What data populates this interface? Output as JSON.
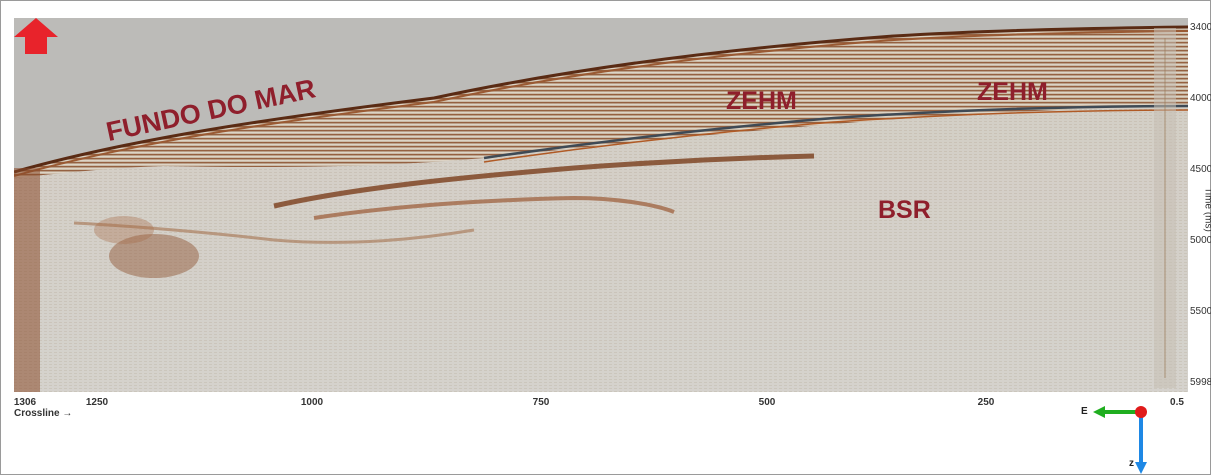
{
  "annotations": {
    "seafloor": "FUNDO DO MAR",
    "zehm_left": "ZEHM",
    "zehm_right": "ZEHM",
    "bsr": "BSR",
    "bsr_arrow": "arrow-up-icon",
    "annotation_color": "#8f1f2c",
    "arrow_color": "#e8232b"
  },
  "y_axis": {
    "title": "Time (ms)",
    "ticks": [
      "3400",
      "4000",
      "4500",
      "5000",
      "5500",
      "5998"
    ]
  },
  "x_axis": {
    "title": "Crossline →",
    "ticks": [
      "1306",
      "1250",
      "1000",
      "750",
      "500",
      "250",
      "0.5"
    ]
  },
  "orientation_widget": {
    "e_label": "E",
    "z_label": "z",
    "e_axis_color": "#1fae1f",
    "z_axis_color": "#1e88e5",
    "origin_color": "#e01b1b"
  }
}
